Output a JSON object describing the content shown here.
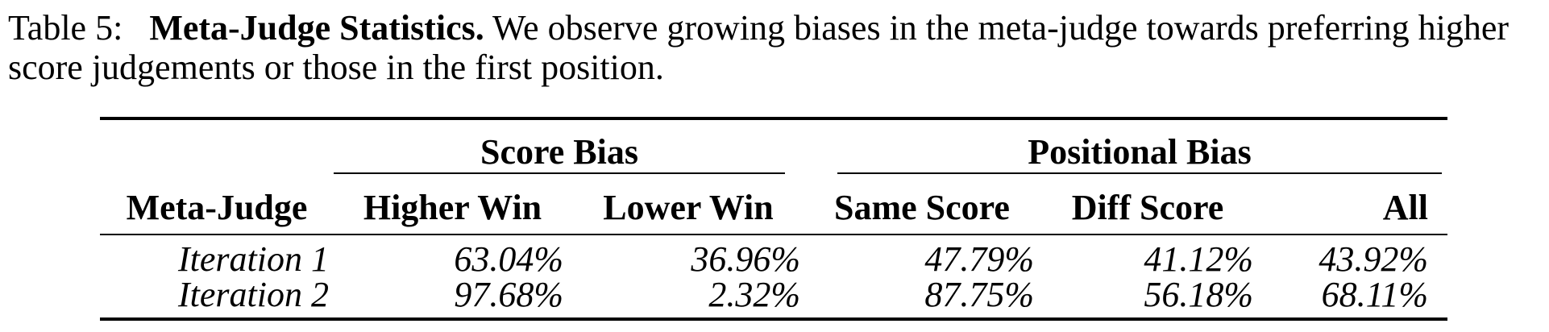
{
  "caption": {
    "label": "Table 5:",
    "title": "Meta-Judge Statistics.",
    "text": "We observe growing biases in the meta-judge towards preferring higher score judgements or those in the first position."
  },
  "table": {
    "groups": {
      "score_bias": "Score Bias",
      "positional_bias": "Positional Bias"
    },
    "headers": {
      "meta_judge": "Meta-Judge",
      "higher_win": "Higher Win",
      "lower_win": "Lower Win",
      "same_score": "Same Score",
      "diff_score": "Diff Score",
      "all": "All"
    },
    "rows": [
      {
        "meta_judge": "Iteration 1",
        "higher_win": "63.04%",
        "lower_win": "36.96%",
        "same_score": "47.79%",
        "diff_score": "41.12%",
        "all": "43.92%"
      },
      {
        "meta_judge": "Iteration 2",
        "higher_win": "97.68%",
        "lower_win": "2.32%",
        "same_score": "87.75%",
        "diff_score": "56.18%",
        "all": "68.11%"
      }
    ]
  }
}
